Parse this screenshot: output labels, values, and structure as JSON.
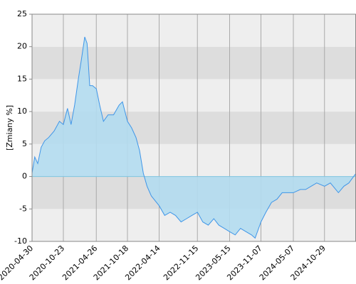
{
  "chart_data": {
    "type": "area",
    "y_label": "[Zmiany %]",
    "x": [
      "2020-04-30",
      "2020-05-15",
      "2020-06-01",
      "2020-06-20",
      "2020-07-10",
      "2020-08-01",
      "2020-09-01",
      "2020-10-01",
      "2020-10-23",
      "2020-11-15",
      "2020-12-05",
      "2020-12-25",
      "2021-01-15",
      "2021-02-01",
      "2021-02-20",
      "2021-03-05",
      "2021-03-20",
      "2021-04-05",
      "2021-04-26",
      "2021-05-15",
      "2021-06-05",
      "2021-07-01",
      "2021-08-01",
      "2021-09-01",
      "2021-09-20",
      "2021-10-18",
      "2021-11-10",
      "2021-12-05",
      "2021-12-25",
      "2022-01-15",
      "2022-02-05",
      "2022-03-01",
      "2022-04-14",
      "2022-05-15",
      "2022-06-15",
      "2022-07-15",
      "2022-08-15",
      "2022-09-15",
      "2022-10-15",
      "2022-11-15",
      "2022-12-15",
      "2023-01-15",
      "2023-02-15",
      "2023-03-15",
      "2023-04-15",
      "2023-05-15",
      "2023-06-15",
      "2023-07-15",
      "2023-08-15",
      "2023-09-15",
      "2023-10-05",
      "2023-11-07",
      "2023-12-05",
      "2024-01-05",
      "2024-02-05",
      "2024-03-05",
      "2024-04-05",
      "2024-05-07",
      "2024-06-15",
      "2024-07-15",
      "2024-08-15",
      "2024-09-15",
      "2024-10-29",
      "2024-12-01",
      "2025-01-15",
      "2025-02-15",
      "2025-03-15",
      "2025-04-24"
    ],
    "values": [
      0.5,
      3,
      2,
      4.5,
      5.5,
      6,
      7,
      8.5,
      8,
      10.5,
      8,
      11,
      15,
      18,
      21.5,
      20.5,
      14,
      14,
      13.5,
      11,
      8.5,
      9.5,
      9.5,
      11,
      11.5,
      8.5,
      7.5,
      6,
      4,
      0.5,
      -1.5,
      -3,
      -4.5,
      -6,
      -5.5,
      -6,
      -7,
      -6.5,
      -6,
      -5.5,
      -7,
      -7.5,
      -6.5,
      -7.5,
      -8,
      -8.5,
      -9,
      -8,
      -8.5,
      -9,
      -9.5,
      -7,
      -5.5,
      -4,
      -3.5,
      -2.5,
      -2.5,
      -2.5,
      -2,
      -2,
      -1.5,
      -1,
      -1.5,
      -1,
      -2.5,
      -1.5,
      -1,
      0.5
    ],
    "color": "#b3dcef",
    "line_color": "#3f96e8",
    "zero_line_color": "#7fc4e0",
    "band_colors": [
      "#eeeeee",
      "#dddddd"
    ],
    "xlim": [
      "2020-04-30",
      "2025-04-24"
    ],
    "xticks": [
      "2020-04-30",
      "2020-10-23",
      "2021-04-26",
      "2021-10-18",
      "2022-04-14",
      "2022-11-15",
      "2023-05-15",
      "2023-11-07",
      "2024-05-07",
      "2024-10-29"
    ],
    "ylim": [
      -10,
      25
    ],
    "yticks": [
      -10,
      -5,
      0,
      5,
      10,
      15,
      20,
      25
    ],
    "grid": true
  }
}
